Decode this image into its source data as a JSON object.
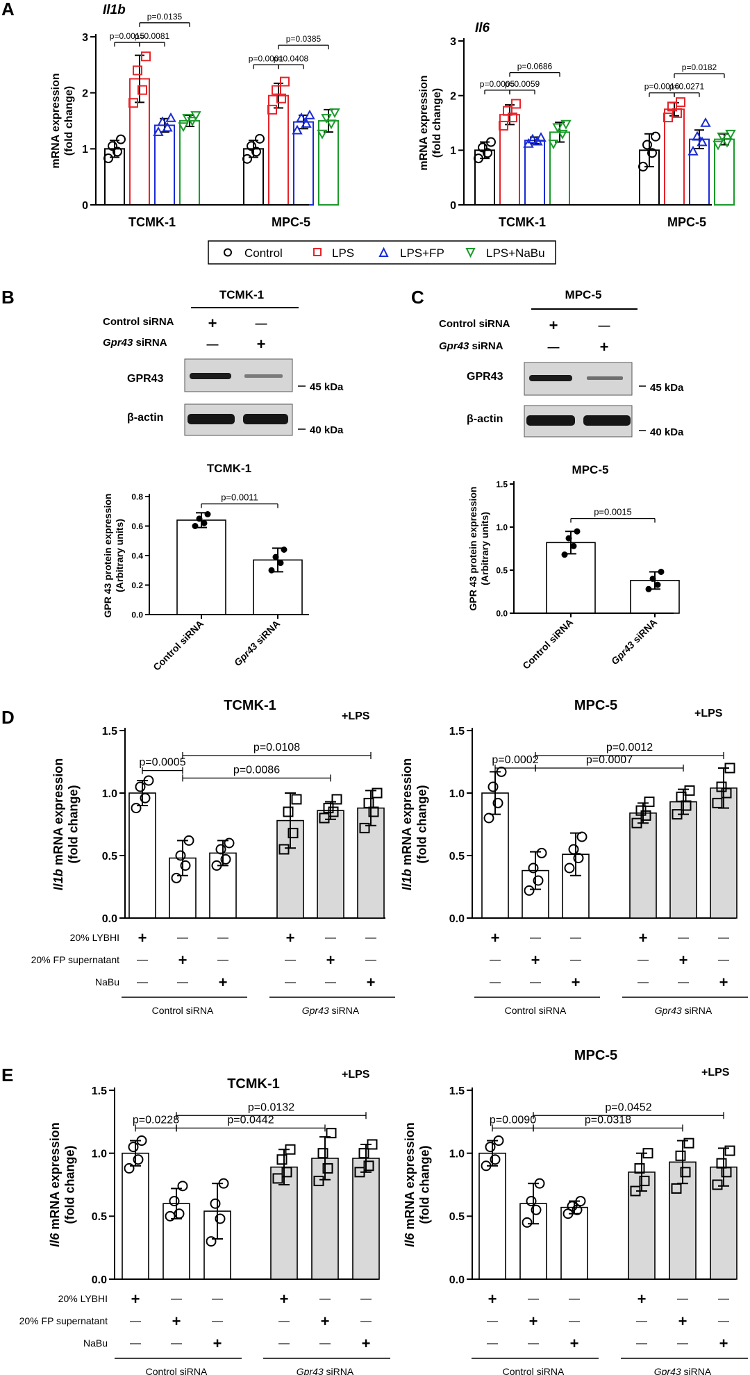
{
  "panel_labels": {
    "a": "A",
    "b": "B",
    "c": "C",
    "d": "D",
    "e": "E"
  },
  "common": {
    "ylabel_mrna": "mRNA expression",
    "ylabel_fold": "(fold change)",
    "ylabel_gpr1": "GPR 43 protein expression",
    "ylabel_gpr2": "(Arbitrary units)",
    "il1b_mrna": "Il1b mRNA expression",
    "il1b_gene": "Il1b",
    "il6_mrna": "Il6 mRNA expression",
    "il6_gene": "Il6",
    "mrna_expression": " mRNA expression",
    "lps": "+LPS",
    "plus": "+",
    "minus": "—",
    "row_lybhi": "20% LYBHI",
    "row_fp": "20% FP supernatant",
    "row_nabu": "NaBu",
    "group_control": "Control siRNA",
    "group_gpr43_italic": "Gpr43",
    "group_sirna": " siRNA",
    "control_sirna": "Control siRNA",
    "gpr43_sirna": "Gpr43 siRNA"
  },
  "legend": {
    "items": [
      {
        "label": "Control",
        "color": "#000000",
        "marker": "circle"
      },
      {
        "label": "LPS",
        "color": "#e8232a",
        "marker": "square"
      },
      {
        "label": "LPS+FP",
        "color": "#1a2bd6",
        "marker": "triangle-up"
      },
      {
        "label": "LPS+NaBu",
        "color": "#1a9a2a",
        "marker": "triangle-down"
      }
    ]
  },
  "blots": {
    "b": {
      "cell": "TCMK-1",
      "row1": "Control siRNA",
      "row2_it": "Gpr43",
      "row2": " siRNA",
      "band1": "GPR43",
      "band2": "β-actin",
      "kda1": "45 kDa",
      "kda2": "40 kDa"
    },
    "c": {
      "cell": "MPC-5",
      "row1": "Control siRNA",
      "row2_it": "Gpr43",
      "row2": " siRNA",
      "band1": "GPR43",
      "band2": "β-actin",
      "kda1": "45 kDa",
      "kda2": "40 kDa"
    }
  },
  "chart_data": [
    {
      "id": "A1",
      "type": "bar",
      "title": "Il1b",
      "xlabel": "",
      "ylabel": "mRNA expression (fold change)",
      "ylim": [
        0,
        3
      ],
      "yticks": [
        "0",
        "1",
        "2",
        "3"
      ],
      "groups": [
        "TCMK-1",
        "MPC-5"
      ],
      "series": [
        {
          "name": "Control",
          "values": [
            1.0,
            1.0
          ],
          "errors": [
            0.15,
            0.15
          ],
          "points": [
            [
              0.83,
              0.95,
              1.05,
              1.17
            ],
            [
              0.82,
              0.95,
              1.05,
              1.18
            ]
          ]
        },
        {
          "name": "LPS",
          "values": [
            2.25,
            1.95
          ],
          "errors": [
            0.42,
            0.22
          ],
          "points": [
            [
              1.82,
              2.05,
              2.4,
              2.65
            ],
            [
              1.7,
              1.9,
              2.05,
              2.2
            ]
          ]
        },
        {
          "name": "LPS+FP",
          "values": [
            1.42,
            1.48
          ],
          "errors": [
            0.12,
            0.12
          ],
          "points": [
            [
              1.3,
              1.38,
              1.48,
              1.55
            ],
            [
              1.33,
              1.45,
              1.55,
              1.6
            ]
          ]
        },
        {
          "name": "LPS+NaBu",
          "values": [
            1.5,
            1.5
          ],
          "errors": [
            0.1,
            0.2
          ],
          "points": [
            [
              1.4,
              1.5,
              1.55,
              1.6
            ],
            [
              1.27,
              1.45,
              1.55,
              1.65
            ]
          ]
        }
      ],
      "annotations": [
        {
          "text": "p=0.0015",
          "group": 0,
          "from": 0,
          "to": 1,
          "y": 2.9
        },
        {
          "text": "p=0.0081",
          "group": 0,
          "from": 1,
          "to": 2,
          "y": 2.9
        },
        {
          "text": "p=0.0135",
          "group": 0,
          "from": 1,
          "to": 3,
          "y": 3.25
        },
        {
          "text": "p=0.0001",
          "group": 1,
          "from": 0,
          "to": 1,
          "y": 2.5
        },
        {
          "text": "p=0.0408",
          "group": 1,
          "from": 1,
          "to": 2,
          "y": 2.5
        },
        {
          "text": "p=0.0385",
          "group": 1,
          "from": 1,
          "to": 3,
          "y": 2.85
        }
      ]
    },
    {
      "id": "A2",
      "type": "bar",
      "title": "Il6",
      "xlabel": "",
      "ylabel": "mRNA expression (fold change)",
      "ylim": [
        0,
        3
      ],
      "yticks": [
        "0",
        "1",
        "2",
        "3"
      ],
      "groups": [
        "TCMK-1",
        "MPC-5"
      ],
      "series": [
        {
          "name": "Control",
          "values": [
            1.0,
            1.0
          ],
          "errors": [
            0.15,
            0.3
          ],
          "points": [
            [
              0.85,
              0.95,
              1.05,
              1.15
            ],
            [
              0.7,
              0.95,
              1.1,
              1.25
            ]
          ]
        },
        {
          "name": "LPS",
          "values": [
            1.65,
            1.75
          ],
          "errors": [
            0.18,
            0.12
          ],
          "points": [
            [
              1.45,
              1.6,
              1.72,
              1.85
            ],
            [
              1.6,
              1.68,
              1.8,
              1.88
            ]
          ]
        },
        {
          "name": "LPS+FP",
          "values": [
            1.18,
            1.2
          ],
          "errors": [
            0.06,
            0.17
          ],
          "points": [
            [
              1.12,
              1.16,
              1.2,
              1.23
            ],
            [
              0.98,
              1.15,
              1.25,
              1.5
            ]
          ]
        },
        {
          "name": "LPS+NaBu",
          "values": [
            1.33,
            1.2
          ],
          "errors": [
            0.18,
            0.1
          ],
          "points": [
            [
              1.12,
              1.3,
              1.42,
              1.48
            ],
            [
              1.1,
              1.15,
              1.25,
              1.3
            ]
          ]
        }
      ],
      "annotations": [
        {
          "text": "p=0.0005",
          "group": 0,
          "from": 0,
          "to": 1,
          "y": 2.1
        },
        {
          "text": "p=0.0059",
          "group": 0,
          "from": 1,
          "to": 2,
          "y": 2.1
        },
        {
          "text": "p=0.0686",
          "group": 0,
          "from": 1,
          "to": 3,
          "y": 2.42
        },
        {
          "text": "p=0.0016",
          "group": 1,
          "from": 0,
          "to": 1,
          "y": 2.05
        },
        {
          "text": "p=0.0271",
          "group": 1,
          "from": 1,
          "to": 2,
          "y": 2.05
        },
        {
          "text": "p=0.0182",
          "group": 1,
          "from": 1,
          "to": 3,
          "y": 2.4
        }
      ]
    },
    {
      "id": "B",
      "type": "bar",
      "title": "TCMK-1",
      "xlabel": "",
      "ylabel": "GPR 43 protein expression (Arbitrary units)",
      "ylim": [
        0,
        0.8
      ],
      "yticks": [
        "0.0",
        "0.2",
        "0.4",
        "0.6",
        "0.8"
      ],
      "categories": [
        "Control siRNA",
        "Gpr43 siRNA"
      ],
      "values": [
        0.64,
        0.37
      ],
      "errors": [
        0.05,
        0.08
      ],
      "points": [
        [
          0.6,
          0.62,
          0.65,
          0.68
        ],
        [
          0.3,
          0.35,
          0.39,
          0.44
        ]
      ],
      "annotations": [
        {
          "text": "p=0.0011",
          "from": 0,
          "to": 1,
          "y": 0.75
        }
      ]
    },
    {
      "id": "C",
      "type": "bar",
      "title": "MPC-5",
      "xlabel": "",
      "ylabel": "GPR 43 protein expression (Arbitrary units)",
      "ylim": [
        0,
        1.5
      ],
      "yticks": [
        "0.0",
        "0.5",
        "1.0",
        "1.5"
      ],
      "categories": [
        "Control siRNA",
        "Gpr43 siRNA"
      ],
      "values": [
        0.82,
        0.38
      ],
      "errors": [
        0.13,
        0.1
      ],
      "points": [
        [
          0.68,
          0.78,
          0.87,
          0.95
        ],
        [
          0.28,
          0.33,
          0.4,
          0.48
        ]
      ],
      "annotations": [
        {
          "text": "p=0.0015",
          "from": 0,
          "to": 1,
          "y": 1.1
        }
      ]
    },
    {
      "id": "D1",
      "type": "bar",
      "title": "TCMK-1",
      "ylabel": "Il1b mRNA expression (fold change)",
      "ylim": [
        0,
        1.5
      ],
      "yticks": [
        "0.0",
        "0.5",
        "1.0",
        "1.5"
      ],
      "categories": [
        "Control siRNA: 20% LYBHI",
        "Control siRNA: 20% FP supernatant",
        "Control siRNA: NaBu",
        "Gpr43 siRNA: 20% LYBHI",
        "Gpr43 siRNA: 20% FP supernatant",
        "Gpr43 siRNA: NaBu"
      ],
      "values": [
        1.0,
        0.48,
        0.52,
        0.78,
        0.86,
        0.88
      ],
      "errors": [
        0.1,
        0.14,
        0.1,
        0.22,
        0.07,
        0.14
      ],
      "points": [
        [
          0.88,
          0.96,
          1.05,
          1.1
        ],
        [
          0.32,
          0.42,
          0.5,
          0.62
        ],
        [
          0.42,
          0.47,
          0.55,
          0.6
        ],
        [
          0.55,
          0.68,
          0.85,
          0.95
        ],
        [
          0.8,
          0.85,
          0.88,
          0.95
        ],
        [
          0.72,
          0.85,
          0.92,
          1.0
        ]
      ],
      "annotations": [
        {
          "text": "p=0.0005",
          "from": 0,
          "to": 1,
          "y": 1.18
        },
        {
          "text": "p=0.0086",
          "from": 1,
          "to": 4,
          "y": 1.12
        },
        {
          "text": "p=0.0108",
          "from": 1,
          "to": 5,
          "y": 1.3
        }
      ]
    },
    {
      "id": "D2",
      "type": "bar",
      "title": "MPC-5",
      "ylabel": "Il1b mRNA expression (fold change)",
      "ylim": [
        0,
        1.5
      ],
      "yticks": [
        "0.0",
        "0.5",
        "1.0",
        "1.5"
      ],
      "categories": [
        "Control siRNA: 20% LYBHI",
        "Control siRNA: 20% FP supernatant",
        "Control siRNA: NaBu",
        "Gpr43 siRNA: 20% LYBHI",
        "Gpr43 siRNA: 20% FP supernatant",
        "Gpr43 siRNA: NaBu"
      ],
      "values": [
        1.0,
        0.38,
        0.51,
        0.84,
        0.93,
        1.04
      ],
      "errors": [
        0.17,
        0.15,
        0.17,
        0.08,
        0.1,
        0.16
      ],
      "points": [
        [
          0.8,
          0.92,
          1.05,
          1.17
        ],
        [
          0.22,
          0.3,
          0.4,
          0.52
        ],
        [
          0.4,
          0.48,
          0.55,
          0.65
        ],
        [
          0.76,
          0.82,
          0.86,
          0.93
        ],
        [
          0.83,
          0.9,
          0.97,
          1.02
        ],
        [
          0.92,
          1.0,
          1.05,
          1.2
        ]
      ],
      "annotations": [
        {
          "text": "p=0.0002",
          "from": 0,
          "to": 1,
          "y": 1.2
        },
        {
          "text": "p=0.0007",
          "from": 1,
          "to": 4,
          "y": 1.2
        },
        {
          "text": "p=0.0012",
          "from": 1,
          "to": 5,
          "y": 1.3
        }
      ]
    },
    {
      "id": "E1",
      "type": "bar",
      "title": "TCMK-1",
      "ylabel": "Il6 mRNA expression (fold change)",
      "ylim": [
        0,
        1.5
      ],
      "yticks": [
        "0.0",
        "0.5",
        "1.0",
        "1.5"
      ],
      "categories": [
        "Control siRNA: 20% LYBHI",
        "Control siRNA: 20% FP supernatant",
        "Control siRNA: NaBu",
        "Gpr43 siRNA: 20% LYBHI",
        "Gpr43 siRNA: 20% FP supernatant",
        "Gpr43 siRNA: NaBu"
      ],
      "values": [
        1.0,
        0.6,
        0.54,
        0.89,
        0.96,
        0.96
      ],
      "errors": [
        0.1,
        0.12,
        0.22,
        0.14,
        0.17,
        0.11
      ],
      "points": [
        [
          0.88,
          0.95,
          1.05,
          1.1
        ],
        [
          0.5,
          0.52,
          0.62,
          0.74
        ],
        [
          0.3,
          0.48,
          0.6,
          0.76
        ],
        [
          0.8,
          0.85,
          0.95,
          1.03
        ],
        [
          0.78,
          0.88,
          1.0,
          1.16
        ],
        [
          0.85,
          0.9,
          1.0,
          1.07
        ]
      ],
      "annotations": [
        {
          "text": "p=0.0228",
          "from": 0,
          "to": 1,
          "y": 1.2
        },
        {
          "text": "p=0.0442",
          "from": 1,
          "to": 4,
          "y": 1.2
        },
        {
          "text": "p=0.0132",
          "from": 1,
          "to": 5,
          "y": 1.3
        }
      ]
    },
    {
      "id": "E2",
      "type": "bar",
      "title": "MPC-5",
      "ylabel": "Il6 mRNA expression (fold change)",
      "ylim": [
        0,
        1.5
      ],
      "yticks": [
        "0.0",
        "0.5",
        "1.0",
        "1.5"
      ],
      "categories": [
        "Control siRNA: 20% LYBHI",
        "Control siRNA: 20% FP supernatant",
        "Control siRNA: NaBu",
        "Gpr43 siRNA: 20% LYBHI",
        "Gpr43 siRNA: 20% FP supernatant",
        "Gpr43 siRNA: NaBu"
      ],
      "values": [
        1.0,
        0.6,
        0.57,
        0.85,
        0.93,
        0.89
      ],
      "errors": [
        0.1,
        0.16,
        0.05,
        0.15,
        0.17,
        0.15
      ],
      "points": [
        [
          0.9,
          0.95,
          1.05,
          1.1
        ],
        [
          0.45,
          0.55,
          0.62,
          0.76
        ],
        [
          0.52,
          0.55,
          0.58,
          0.62
        ],
        [
          0.7,
          0.78,
          0.88,
          1.0
        ],
        [
          0.72,
          0.85,
          0.98,
          1.08
        ],
        [
          0.75,
          0.85,
          0.92,
          1.02
        ]
      ],
      "annotations": [
        {
          "text": "p=0.0090",
          "from": 0,
          "to": 1,
          "y": 1.2
        },
        {
          "text": "p=0.0318",
          "from": 1,
          "to": 4,
          "y": 1.2
        },
        {
          "text": "p=0.0452",
          "from": 1,
          "to": 5,
          "y": 1.3
        }
      ]
    }
  ]
}
